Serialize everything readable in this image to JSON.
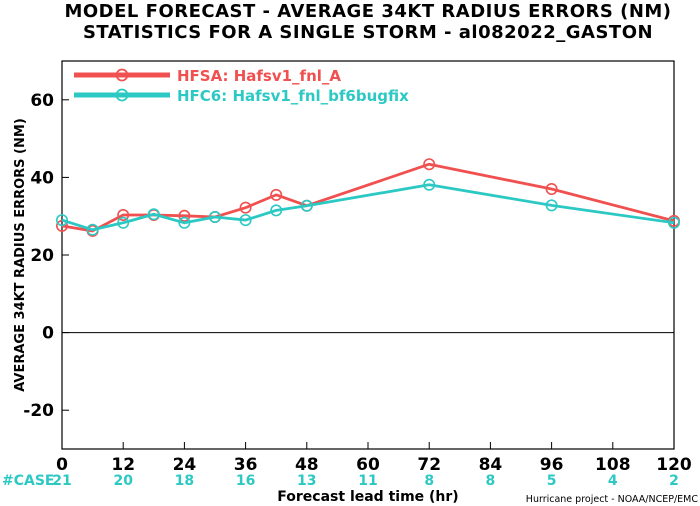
{
  "chart_data": {
    "type": "line",
    "title_line1": "MODEL FORECAST - AVERAGE 34KT RADIUS ERRORS (NM)",
    "title_line2": "STATISTICS FOR A SINGLE STORM - al082022_GASTON",
    "xlabel": "Forecast lead time (hr)",
    "ylabel": "AVERAGE 34KT RADIUS ERRORS (NM)",
    "xlim": [
      0,
      120
    ],
    "ylim": [
      -30,
      70
    ],
    "x_ticks": [
      0,
      12,
      24,
      36,
      48,
      60,
      72,
      84,
      96,
      108,
      120
    ],
    "y_ticks": [
      -20,
      0,
      20,
      40,
      60
    ],
    "zero_line": true,
    "legend_position": "top-left",
    "series": [
      {
        "name": "HFSA: Hafsv1_fnl_A",
        "color": "#f0504f",
        "x": [
          0,
          6,
          12,
          18,
          24,
          30,
          36,
          42,
          48,
          72,
          96,
          120
        ],
        "y": [
          27.5,
          26.2,
          30.3,
          30.3,
          30.1,
          29.8,
          32.2,
          35.5,
          32.7,
          43.4,
          37.0,
          28.8
        ]
      },
      {
        "name": "HFC6: Hafsv1_fnl_bf6bugfix",
        "color": "#2cc9c4",
        "x": [
          0,
          6,
          12,
          18,
          24,
          30,
          36,
          42,
          48,
          72,
          96,
          120
        ],
        "y": [
          29.0,
          26.5,
          28.3,
          30.5,
          28.3,
          29.8,
          29.0,
          31.5,
          32.7,
          38.1,
          32.8,
          28.3
        ]
      }
    ],
    "case_label": "#CASE",
    "case_counts": [
      {
        "x": 0,
        "n": "21"
      },
      {
        "x": 12,
        "n": "20"
      },
      {
        "x": 24,
        "n": "18"
      },
      {
        "x": 36,
        "n": "16"
      },
      {
        "x": 48,
        "n": "13"
      },
      {
        "x": 60,
        "n": "11"
      },
      {
        "x": 72,
        "n": "8"
      },
      {
        "x": 84,
        "n": "8"
      },
      {
        "x": 96,
        "n": "5"
      },
      {
        "x": 108,
        "n": "4"
      },
      {
        "x": 120,
        "n": "2"
      }
    ],
    "case_color": "#2cc9c4",
    "credit": "Hurricane project - NOAA/NCEP/EMC"
  }
}
